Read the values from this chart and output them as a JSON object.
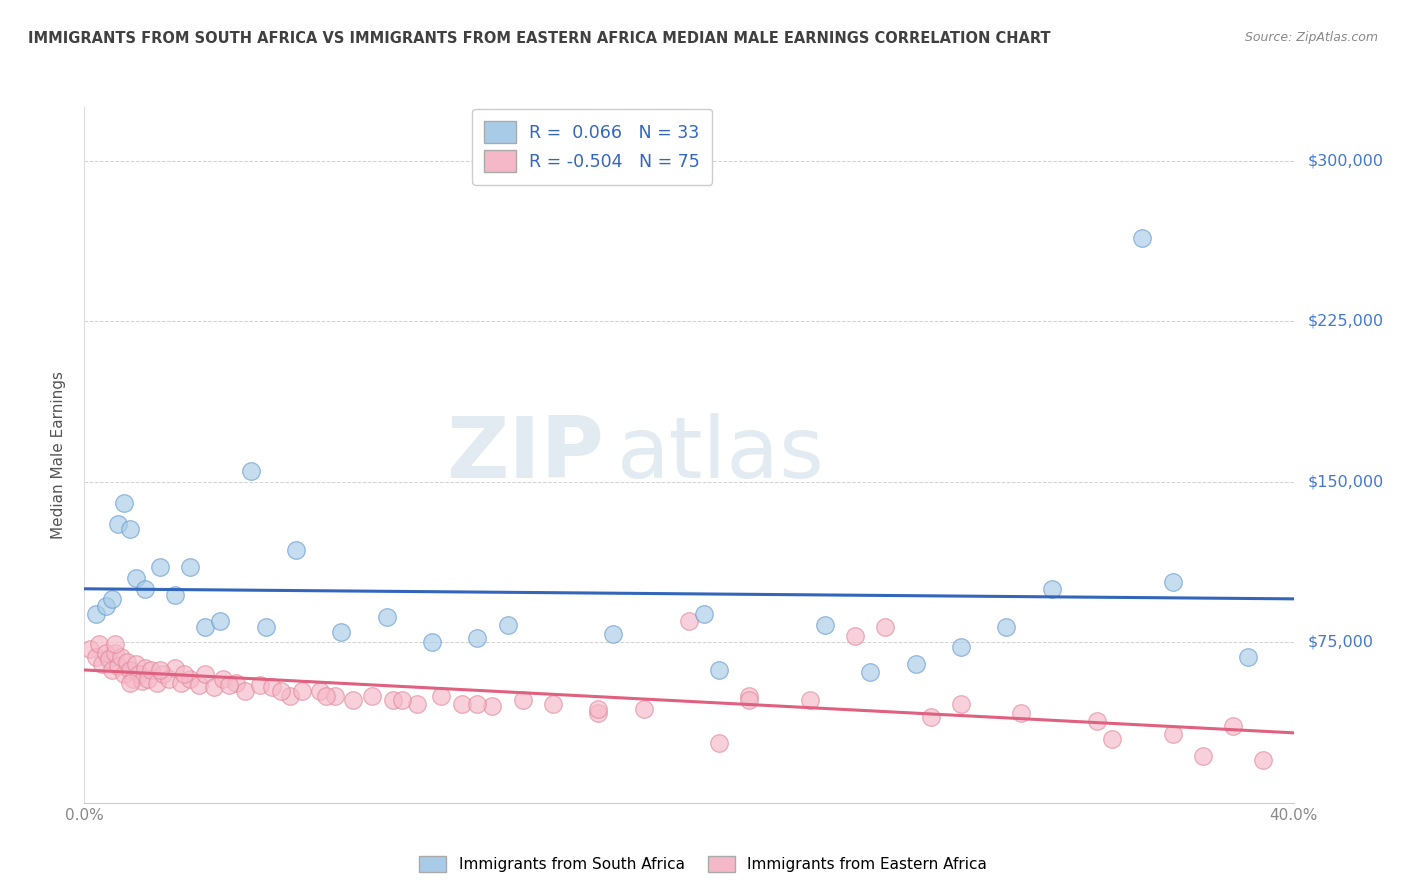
{
  "title": "IMMIGRANTS FROM SOUTH AFRICA VS IMMIGRANTS FROM EASTERN AFRICA MEDIAN MALE EARNINGS CORRELATION CHART",
  "source": "Source: ZipAtlas.com",
  "ylabel": "Median Male Earnings",
  "xmin": 0.0,
  "xmax": 40.0,
  "ymin": 0,
  "ymax": 325000,
  "yticks": [
    0,
    75000,
    150000,
    225000,
    300000
  ],
  "ytick_labels": [
    "",
    "$75,000",
    "$150,000",
    "$225,000",
    "$300,000"
  ],
  "watermark_zip": "ZIP",
  "watermark_atlas": "atlas",
  "series1_color": "#a8cce8",
  "series1_edge": "#6699cc",
  "series1_line": "#3366bb",
  "series2_color": "#f5b8c8",
  "series2_edge": "#e08898",
  "series2_line": "#e06080",
  "series1_R": 0.066,
  "series1_N": 33,
  "series2_R": -0.504,
  "series2_N": 75,
  "legend_label1": "Immigrants from South Africa",
  "legend_label2": "Immigrants from Eastern Africa",
  "background_color": "#ffffff",
  "plot_bg_color": "#ffffff",
  "grid_color": "#cccccc",
  "title_color": "#404040",
  "axis_color": "#888888",
  "right_label_color": "#4477cc",
  "series1_x": [
    0.4,
    0.7,
    0.9,
    1.1,
    1.3,
    1.5,
    1.7,
    2.0,
    2.5,
    3.0,
    3.5,
    4.0,
    4.5,
    5.5,
    7.0,
    8.5,
    10.0,
    11.5,
    14.0,
    17.5,
    20.5,
    24.5,
    26.0,
    30.5,
    32.0,
    35.0,
    38.5,
    6.0,
    13.0,
    21.0,
    27.5,
    29.0,
    36.0
  ],
  "series1_y": [
    88000,
    92000,
    95000,
    130000,
    140000,
    128000,
    105000,
    100000,
    110000,
    97000,
    110000,
    82000,
    85000,
    155000,
    118000,
    80000,
    87000,
    75000,
    83000,
    79000,
    88000,
    83000,
    61000,
    82000,
    100000,
    264000,
    68000,
    82000,
    77000,
    62000,
    65000,
    73000,
    103000
  ],
  "series2_x": [
    0.2,
    0.4,
    0.5,
    0.6,
    0.7,
    0.8,
    0.9,
    1.0,
    1.1,
    1.2,
    1.3,
    1.4,
    1.5,
    1.6,
    1.7,
    1.8,
    1.9,
    2.0,
    2.1,
    2.2,
    2.4,
    2.6,
    2.8,
    3.0,
    3.2,
    3.5,
    3.8,
    4.0,
    4.3,
    4.6,
    5.0,
    5.3,
    5.8,
    6.2,
    6.8,
    7.2,
    7.8,
    8.3,
    8.9,
    9.5,
    10.2,
    11.0,
    11.8,
    12.5,
    13.5,
    14.5,
    15.5,
    17.0,
    18.5,
    20.0,
    22.0,
    24.0,
    26.5,
    29.0,
    31.0,
    33.5,
    36.0,
    38.0,
    1.0,
    1.5,
    2.5,
    3.3,
    4.8,
    6.5,
    8.0,
    10.5,
    13.0,
    17.0,
    22.0,
    28.0,
    34.0,
    37.0,
    39.0,
    21.0,
    25.5
  ],
  "series2_y": [
    72000,
    68000,
    74000,
    65000,
    70000,
    67000,
    62000,
    70000,
    64000,
    68000,
    60000,
    66000,
    62000,
    58000,
    65000,
    60000,
    57000,
    63000,
    58000,
    62000,
    56000,
    60000,
    58000,
    63000,
    56000,
    58000,
    55000,
    60000,
    54000,
    58000,
    56000,
    52000,
    55000,
    54000,
    50000,
    52000,
    52000,
    50000,
    48000,
    50000,
    48000,
    46000,
    50000,
    46000,
    45000,
    48000,
    46000,
    42000,
    44000,
    85000,
    50000,
    48000,
    82000,
    46000,
    42000,
    38000,
    32000,
    36000,
    74000,
    56000,
    62000,
    60000,
    55000,
    52000,
    50000,
    48000,
    46000,
    44000,
    48000,
    40000,
    30000,
    22000,
    20000,
    28000,
    78000
  ]
}
